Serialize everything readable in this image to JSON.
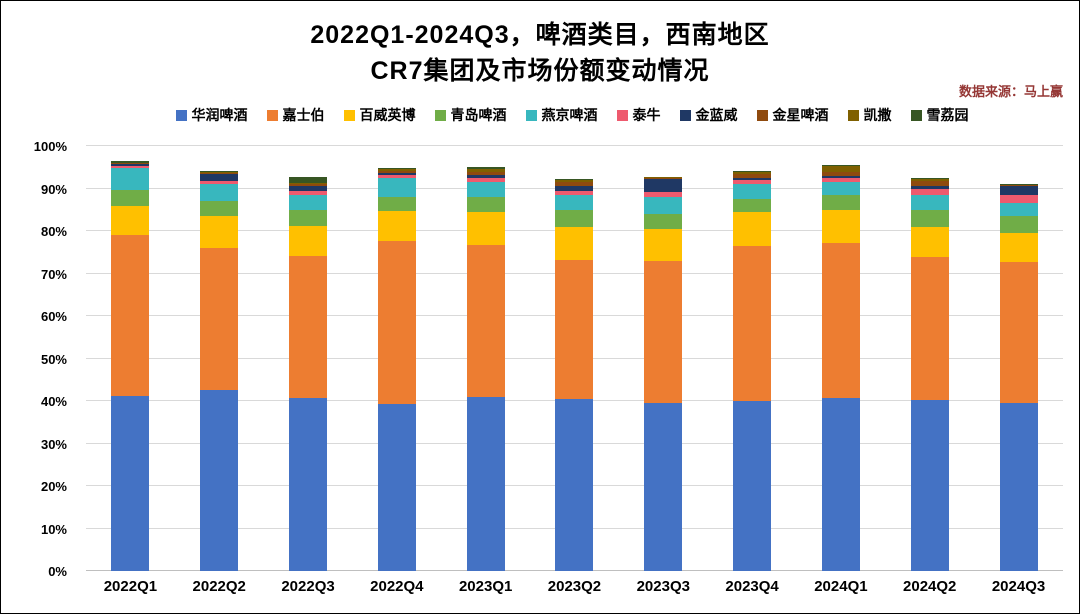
{
  "title": {
    "line1": "2022Q1-2024Q3，啤酒类目，西南地区",
    "line2": "CR7集团及市场份额变动情况"
  },
  "source_note": "数据来源：马上赢",
  "chart_data": {
    "type": "bar",
    "stacked": true,
    "title": "2022Q1-2024Q3，啤酒类目，西南地区 CR7集团及市场份额变动情况",
    "xlabel": "",
    "ylabel": "",
    "ylim": [
      0,
      100
    ],
    "y_ticks": [
      "0%",
      "10%",
      "20%",
      "30%",
      "40%",
      "50%",
      "60%",
      "70%",
      "80%",
      "90%",
      "100%"
    ],
    "grid": true,
    "legend_position": "top",
    "categories": [
      "2022Q1",
      "2022Q2",
      "2022Q3",
      "2022Q4",
      "2023Q1",
      "2023Q2",
      "2023Q3",
      "2023Q4",
      "2024Q1",
      "2024Q2",
      "2024Q3"
    ],
    "series": [
      {
        "name": "华润啤酒",
        "color": "#4472C4",
        "values": [
          41.2,
          42.5,
          40.6,
          39.2,
          40.9,
          40.4,
          39.6,
          39.9,
          40.7,
          40.2,
          39.5
        ]
      },
      {
        "name": "嘉士伯",
        "color": "#ED7D31",
        "values": [
          37.8,
          33.6,
          33.6,
          38.4,
          35.7,
          32.7,
          33.4,
          36.6,
          36.4,
          33.8,
          33.1
        ]
      },
      {
        "name": "百威英博",
        "color": "#FFC000",
        "values": [
          7.0,
          7.4,
          6.9,
          7.0,
          7.9,
          7.9,
          7.5,
          8.0,
          7.9,
          7.0,
          6.9
        ]
      },
      {
        "name": "青岛啤酒",
        "color": "#70AD47",
        "values": [
          3.6,
          3.5,
          3.9,
          3.5,
          3.5,
          4.0,
          3.5,
          3.0,
          3.5,
          4.0,
          4.0
        ]
      },
      {
        "name": "燕京啤酒",
        "color": "#38B7BE",
        "values": [
          5.3,
          4.0,
          3.5,
          4.4,
          3.5,
          3.5,
          4.0,
          3.5,
          3.0,
          3.5,
          3.0
        ]
      },
      {
        "name": "泰牛",
        "color": "#EE5A6E",
        "values": [
          0.5,
          0.8,
          1.0,
          0.8,
          1.0,
          1.0,
          1.2,
          1.0,
          1.0,
          1.5,
          2.0
        ]
      },
      {
        "name": "金蓝威",
        "color": "#1F3864",
        "values": [
          0.3,
          1.6,
          1.0,
          0.4,
          0.8,
          1.2,
          3.0,
          0.5,
          0.5,
          0.5,
          2.0
        ]
      },
      {
        "name": "金星啤酒",
        "color": "#8F4A0E",
        "values": [
          0.2,
          0.3,
          0.5,
          0.4,
          0.6,
          0.8,
          0.3,
          1.0,
          1.0,
          1.2,
          0.3
        ]
      },
      {
        "name": "凯撒",
        "color": "#7F6000",
        "values": [
          0.1,
          0.2,
          0.3,
          0.5,
          0.8,
          0.5,
          0.1,
          0.4,
          1.3,
          0.5,
          0.1
        ]
      },
      {
        "name": "雪荔园",
        "color": "#375623",
        "values": [
          0.5,
          0.3,
          1.5,
          0.3,
          0.3,
          0.2,
          0.1,
          0.2,
          0.2,
          0.3,
          0.1
        ]
      }
    ]
  }
}
